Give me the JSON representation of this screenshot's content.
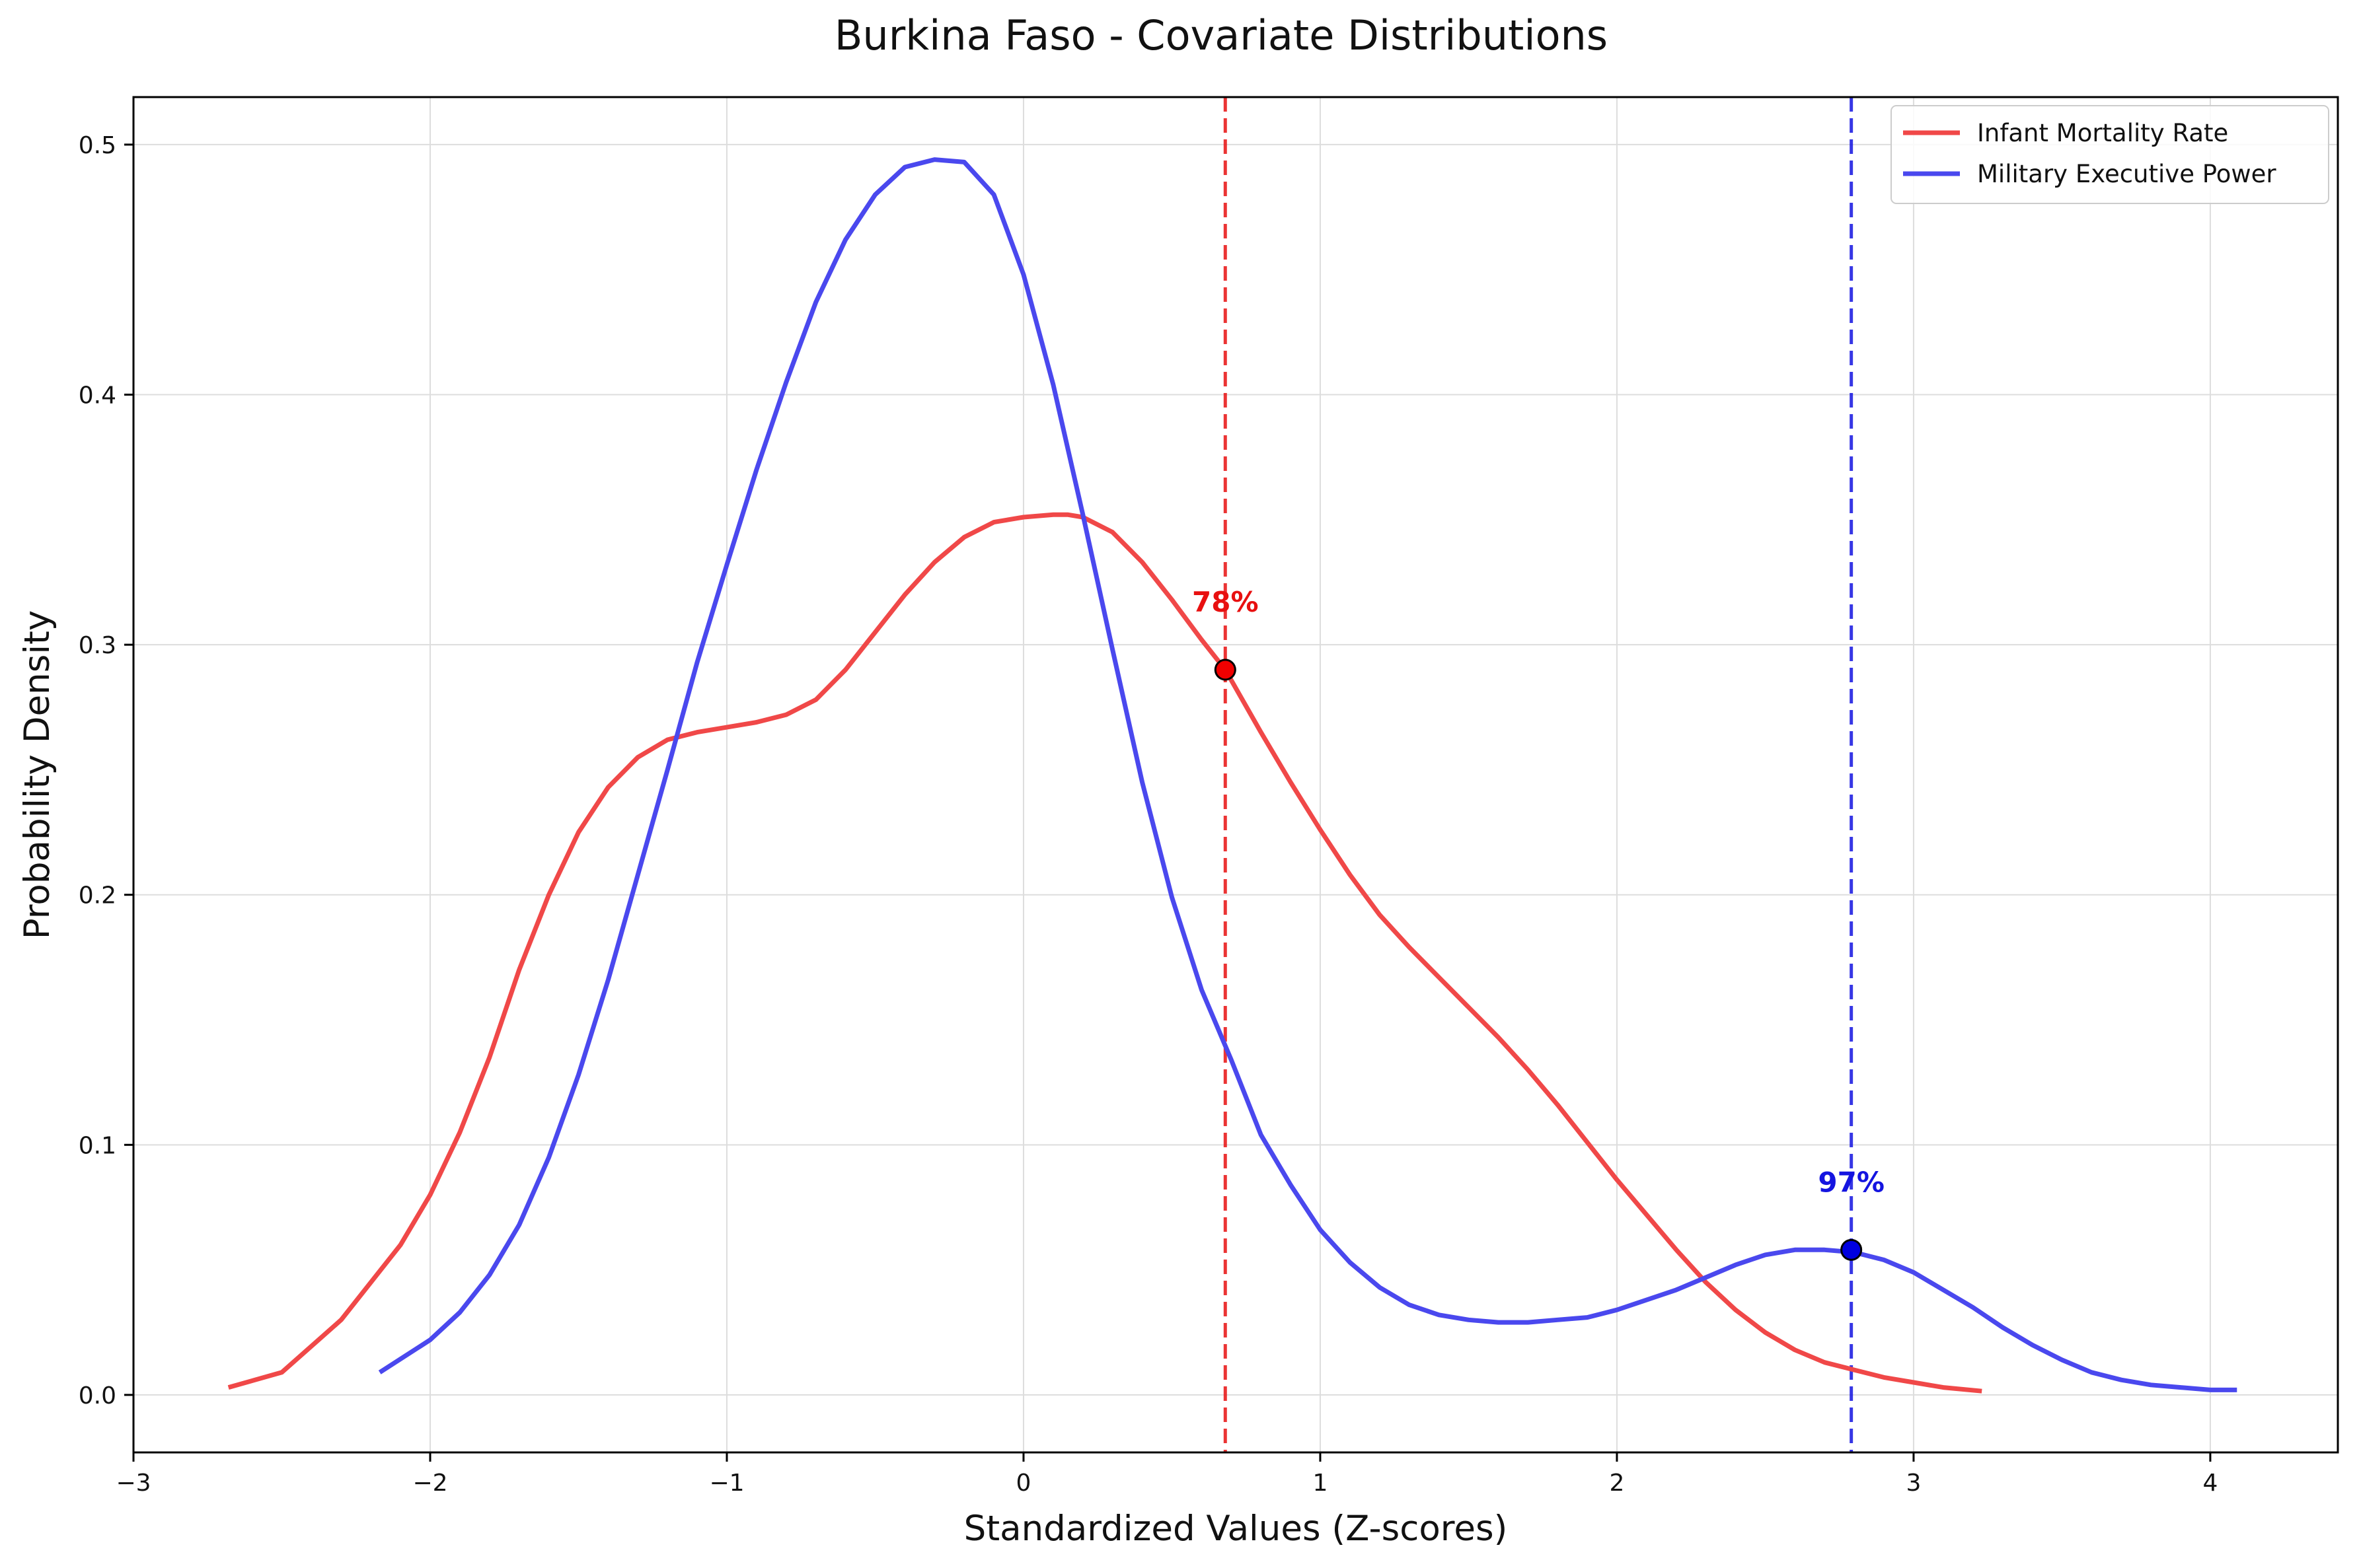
{
  "chart_data": {
    "type": "line",
    "title": "Burkina Faso - Covariate Distributions",
    "xlabel": "Standardized Values (Z-scores)",
    "ylabel": "Probability Density",
    "xlim": [
      -3,
      4.43
    ],
    "ylim": [
      -0.023,
      0.519
    ],
    "xticks": [
      -3,
      -2,
      -1,
      0,
      1,
      2,
      3,
      4
    ],
    "xtick_labels": [
      "−3",
      "−2",
      "−1",
      "0",
      "1",
      "2",
      "3",
      "4"
    ],
    "yticks": [
      0.0,
      0.1,
      0.2,
      0.3,
      0.4,
      0.5
    ],
    "ytick_labels": [
      "0.0",
      "0.1",
      "0.2",
      "0.3",
      "0.4",
      "0.5"
    ],
    "grid": true,
    "legend_position": "top-right",
    "series": [
      {
        "name": "Infant Mortality Rate",
        "color": "#f04848",
        "x": [
          -2.68,
          -2.5,
          -2.3,
          -2.1,
          -2.0,
          -1.9,
          -1.8,
          -1.7,
          -1.6,
          -1.5,
          -1.4,
          -1.3,
          -1.2,
          -1.1,
          -1.0,
          -0.9,
          -0.8,
          -0.7,
          -0.6,
          -0.5,
          -0.4,
          -0.3,
          -0.2,
          -0.1,
          0.0,
          0.1,
          0.15,
          0.2,
          0.3,
          0.4,
          0.5,
          0.6,
          0.68,
          0.8,
          0.9,
          1.0,
          1.1,
          1.2,
          1.3,
          1.4,
          1.5,
          1.6,
          1.7,
          1.8,
          1.9,
          2.0,
          2.1,
          2.2,
          2.3,
          2.4,
          2.5,
          2.6,
          2.7,
          2.8,
          2.9,
          3.0,
          3.1,
          3.23
        ],
        "y": [
          0.003,
          0.009,
          0.03,
          0.06,
          0.08,
          0.105,
          0.135,
          0.17,
          0.2,
          0.225,
          0.243,
          0.255,
          0.262,
          0.265,
          0.267,
          0.269,
          0.272,
          0.278,
          0.29,
          0.305,
          0.32,
          0.333,
          0.343,
          0.349,
          0.351,
          0.352,
          0.352,
          0.351,
          0.345,
          0.333,
          0.318,
          0.302,
          0.29,
          0.265,
          0.245,
          0.226,
          0.208,
          0.192,
          0.179,
          0.167,
          0.155,
          0.143,
          0.13,
          0.116,
          0.101,
          0.086,
          0.072,
          0.058,
          0.045,
          0.034,
          0.025,
          0.018,
          0.013,
          0.01,
          0.007,
          0.005,
          0.003,
          0.0015
        ]
      },
      {
        "name": "Military Executive Power",
        "color": "#4a48ee",
        "x": [
          -2.17,
          -2.0,
          -1.9,
          -1.8,
          -1.7,
          -1.6,
          -1.5,
          -1.4,
          -1.3,
          -1.2,
          -1.1,
          -1.0,
          -0.9,
          -0.8,
          -0.7,
          -0.6,
          -0.5,
          -0.4,
          -0.3,
          -0.2,
          -0.1,
          0.0,
          0.1,
          0.2,
          0.3,
          0.4,
          0.5,
          0.6,
          0.7,
          0.8,
          0.9,
          1.0,
          1.1,
          1.2,
          1.3,
          1.4,
          1.5,
          1.6,
          1.7,
          1.8,
          1.9,
          2.0,
          2.1,
          2.2,
          2.3,
          2.4,
          2.5,
          2.6,
          2.7,
          2.8,
          2.9,
          3.0,
          3.1,
          3.2,
          3.3,
          3.4,
          3.5,
          3.6,
          3.7,
          3.8,
          3.9,
          4.0,
          4.09
        ],
        "y": [
          0.009,
          0.022,
          0.033,
          0.048,
          0.068,
          0.095,
          0.128,
          0.166,
          0.208,
          0.25,
          0.293,
          0.332,
          0.37,
          0.405,
          0.437,
          0.462,
          0.48,
          0.491,
          0.494,
          0.493,
          0.48,
          0.448,
          0.404,
          0.352,
          0.298,
          0.245,
          0.199,
          0.162,
          0.134,
          0.104,
          0.084,
          0.066,
          0.053,
          0.043,
          0.036,
          0.032,
          0.03,
          0.029,
          0.029,
          0.03,
          0.031,
          0.034,
          0.038,
          0.042,
          0.047,
          0.052,
          0.056,
          0.058,
          0.058,
          0.057,
          0.054,
          0.049,
          0.042,
          0.035,
          0.027,
          0.02,
          0.014,
          0.009,
          0.006,
          0.004,
          0.003,
          0.002,
          0.002
        ]
      }
    ],
    "markers": [
      {
        "series": "Infant Mortality Rate",
        "x": 0.68,
        "y": 0.29,
        "label": "78%",
        "color": "#e81010",
        "fill": "#f00000"
      },
      {
        "series": "Military Executive Power",
        "x": 2.79,
        "y": 0.058,
        "label": "97%",
        "color": "#1414e0",
        "fill": "#0000e0"
      }
    ]
  }
}
